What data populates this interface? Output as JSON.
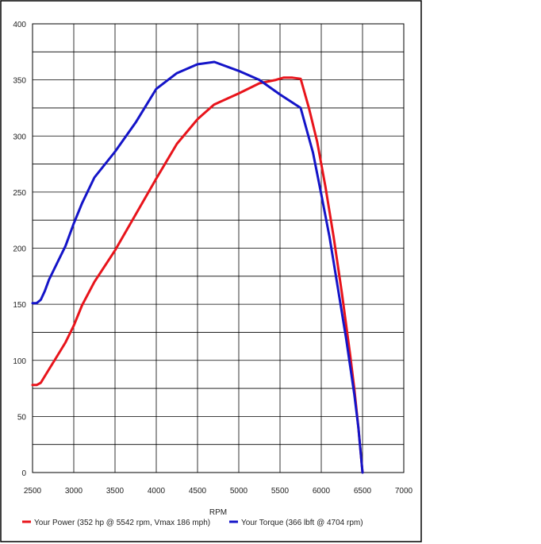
{
  "chart_data": {
    "type": "line",
    "title": "",
    "xlabel": "RPM",
    "ylabel": "",
    "xlim": [
      2500,
      7000
    ],
    "ylim": [
      0,
      400
    ],
    "x_ticks": [
      2500,
      3000,
      3500,
      4000,
      4500,
      5000,
      5500,
      6000,
      6500,
      7000
    ],
    "y_ticks": [
      0,
      50,
      100,
      150,
      200,
      250,
      300,
      350,
      400
    ],
    "grid": true,
    "legend_position": "bottom",
    "series": [
      {
        "name": "Your Power (352 hp @ 5542 rpm, Vmax 186 mph)",
        "color": "#e8141b",
        "x": [
          2500,
          2550,
          2600,
          2650,
          2700,
          2800,
          2900,
          3000,
          3100,
          3250,
          3500,
          3750,
          4000,
          4250,
          4500,
          4700,
          5000,
          5250,
          5450,
          5542,
          5650,
          5750,
          5850,
          5950,
          6050,
          6150,
          6250,
          6350,
          6400,
          6450,
          6500
        ],
        "y": [
          78,
          78,
          80,
          86,
          92,
          104,
          116,
          131,
          149,
          170,
          198,
          230,
          262,
          293,
          315,
          328,
          338,
          347,
          350,
          352,
          352,
          351,
          325,
          295,
          255,
          210,
          160,
          105,
          75,
          40,
          0
        ]
      },
      {
        "name": "Your Torque (366 lbft @ 4704 rpm)",
        "color": "#1414c8",
        "x": [
          2500,
          2550,
          2600,
          2650,
          2700,
          2800,
          2900,
          3000,
          3100,
          3250,
          3500,
          3750,
          4000,
          4250,
          4500,
          4704,
          5000,
          5250,
          5500,
          5750,
          5900,
          6000,
          6100,
          6200,
          6300,
          6400,
          6450,
          6500
        ],
        "y": [
          151,
          151,
          154,
          162,
          172,
          187,
          202,
          222,
          240,
          263,
          286,
          312,
          342,
          356,
          364,
          366,
          358,
          350,
          337,
          325,
          285,
          248,
          210,
          165,
          120,
          70,
          40,
          0
        ]
      }
    ]
  }
}
